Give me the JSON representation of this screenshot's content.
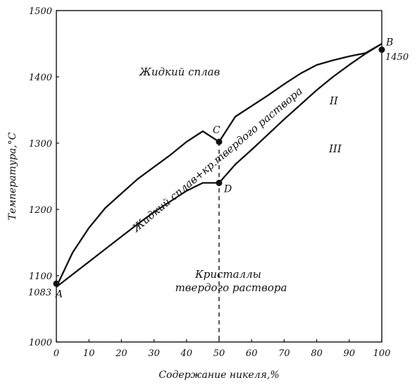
{
  "chart_data": {
    "type": "line",
    "title": "",
    "xlabel": "Содержание никеля,%",
    "ylabel": "Температура,°C",
    "xlim": [
      0,
      100
    ],
    "ylim": [
      1000,
      1500
    ],
    "x_ticks": [
      0,
      10,
      20,
      30,
      40,
      50,
      60,
      70,
      80,
      90,
      100
    ],
    "y_ticks": [
      1000,
      1100,
      1200,
      1300,
      1400,
      1500
    ],
    "grid": false,
    "series": [
      {
        "x": [
          0,
          5,
          10,
          15,
          20,
          25,
          30,
          35,
          40,
          45,
          50,
          55,
          60,
          65,
          70,
          75,
          80,
          85,
          90,
          95,
          100
        ],
        "y": [
          1083,
          1135,
          1172,
          1202,
          1224,
          1246,
          1264,
          1282,
          1302,
          1318,
          1302,
          1340,
          1356,
          1372,
          1389,
          1405,
          1418,
          1425,
          1431,
          1436,
          1450
        ]
      },
      {
        "x": [
          0,
          5,
          10,
          15,
          20,
          25,
          30,
          35,
          40,
          45,
          50,
          55,
          60,
          65,
          70,
          75,
          80,
          85,
          90,
          95,
          100
        ],
        "y": [
          1083,
          1102,
          1121,
          1140,
          1159,
          1178,
          1196,
          1212,
          1228,
          1240,
          1240,
          1268,
          1290,
          1313,
          1336,
          1358,
          1380,
          1400,
          1418,
          1435,
          1450
        ]
      }
    ],
    "points": [
      {
        "label": "A",
        "x": 0,
        "y": 1088
      },
      {
        "label": "B",
        "x": 100,
        "y": 1441
      },
      {
        "label": "C",
        "x": 50,
        "y": 1302
      },
      {
        "label": "D",
        "x": 50,
        "y": 1240
      }
    ],
    "end_labels": {
      "left": "1083",
      "right": "1450"
    },
    "region_labels": {
      "liquid": "Жидкий сплав",
      "two_phase": "Жидкий сплав+кр.твердого раствора",
      "roman_2": "II",
      "roman_3": "III",
      "solid_line1": "Кристаллы",
      "solid_line2": "твердого раствора"
    }
  }
}
